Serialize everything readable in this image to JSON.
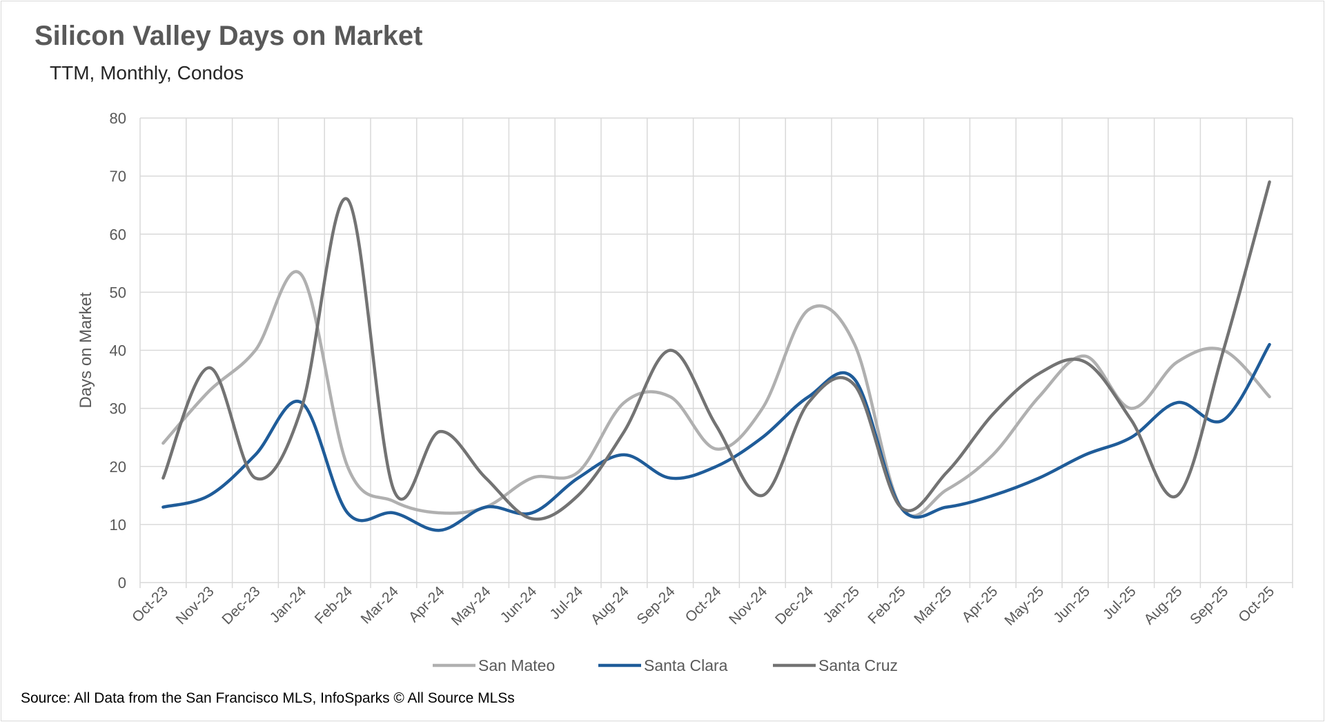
{
  "chart_data": {
    "type": "line",
    "title": "Silicon Valley Days on Market",
    "subtitle": "TTM, Monthly, Condos",
    "xlabel": "",
    "ylabel": "Days on Market",
    "ylim": [
      0,
      80
    ],
    "yticks": [
      0,
      10,
      20,
      30,
      40,
      50,
      60,
      70,
      80
    ],
    "grid": true,
    "smoothed": true,
    "legend_position": "bottom",
    "categories": [
      "Oct-23",
      "Nov-23",
      "Dec-23",
      "Jan-24",
      "Feb-24",
      "Mar-24",
      "Apr-24",
      "May-24",
      "Jun-24",
      "Jul-24",
      "Aug-24",
      "Sep-24",
      "Oct-24",
      "Nov-24",
      "Dec-24",
      "Jan-25",
      "Feb-25",
      "Mar-25",
      "Apr-25",
      "May-25",
      "Jun-25",
      "Jul-25",
      "Aug-25",
      "Sep-25",
      "Oct-25"
    ],
    "series": [
      {
        "name": "San Mateo",
        "color": "#b0b0b0",
        "values": [
          24,
          33,
          40,
          53,
          20,
          14,
          12,
          13,
          18,
          19,
          31,
          32,
          23,
          30,
          47,
          41,
          13,
          16,
          22,
          32,
          39,
          30,
          38,
          40,
          32
        ]
      },
      {
        "name": "Santa Clara",
        "color": "#1f5c99",
        "values": [
          13,
          15,
          22,
          31,
          12,
          12,
          9,
          13,
          12,
          18,
          22,
          18,
          20,
          25,
          32,
          35,
          13,
          13,
          15,
          18,
          22,
          25,
          31,
          28,
          41
        ]
      },
      {
        "name": "Santa Cruz",
        "color": "#737373",
        "values": [
          18,
          37,
          18,
          30,
          66,
          16,
          26,
          18,
          11,
          15,
          26,
          40,
          27,
          15,
          31,
          34,
          13,
          19,
          29,
          36,
          38,
          28,
          15,
          40,
          69
        ]
      }
    ],
    "source": "Source: All Data from the San Francisco MLS, InfoSparks © All Source MLSs"
  }
}
